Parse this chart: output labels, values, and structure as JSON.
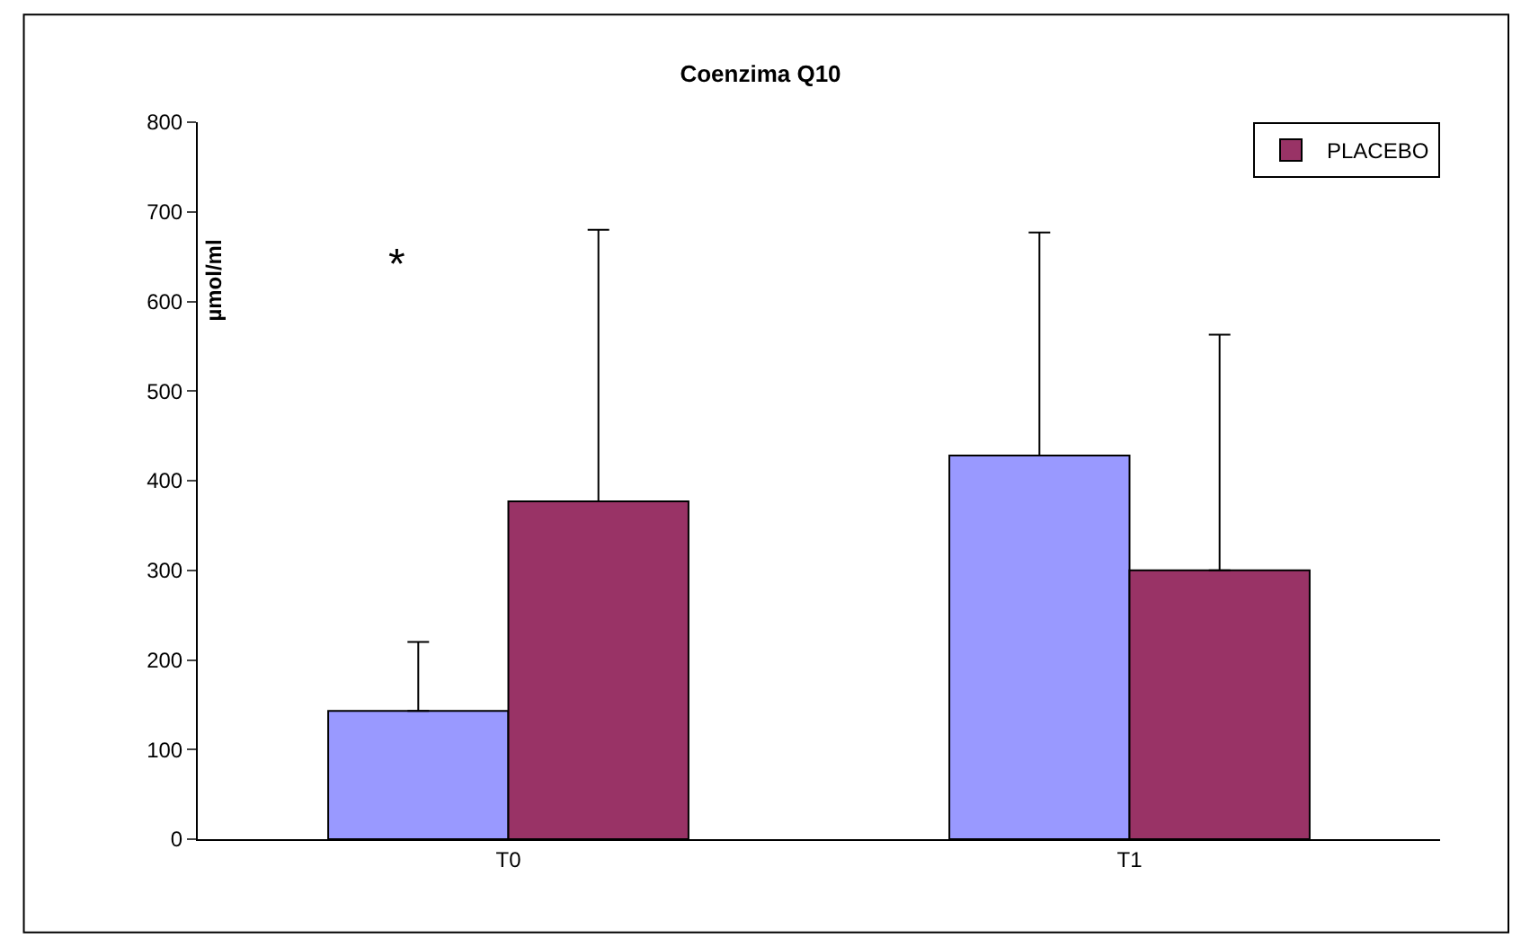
{
  "chart_data": {
    "type": "bar",
    "title": "Coenzima Q10",
    "ylabel": "µmol/ml",
    "categories": [
      "T0",
      "T1"
    ],
    "series": [
      {
        "color": "#9999ff",
        "values": [
          143,
          428
        ],
        "errors": [
          [
            143,
            220
          ],
          [
            428,
            677
          ]
        ]
      },
      {
        "name": "PLACEBO",
        "color": "#993366",
        "values": [
          377,
          300
        ],
        "errors": [
          [
            377,
            680
          ],
          [
            300,
            563
          ]
        ]
      }
    ],
    "ylim": [
      0,
      800
    ],
    "yticks": [
      0,
      100,
      200,
      300,
      400,
      500,
      600,
      700,
      800
    ],
    "grid": false,
    "legend": "top right",
    "annotations": [
      "*"
    ]
  }
}
